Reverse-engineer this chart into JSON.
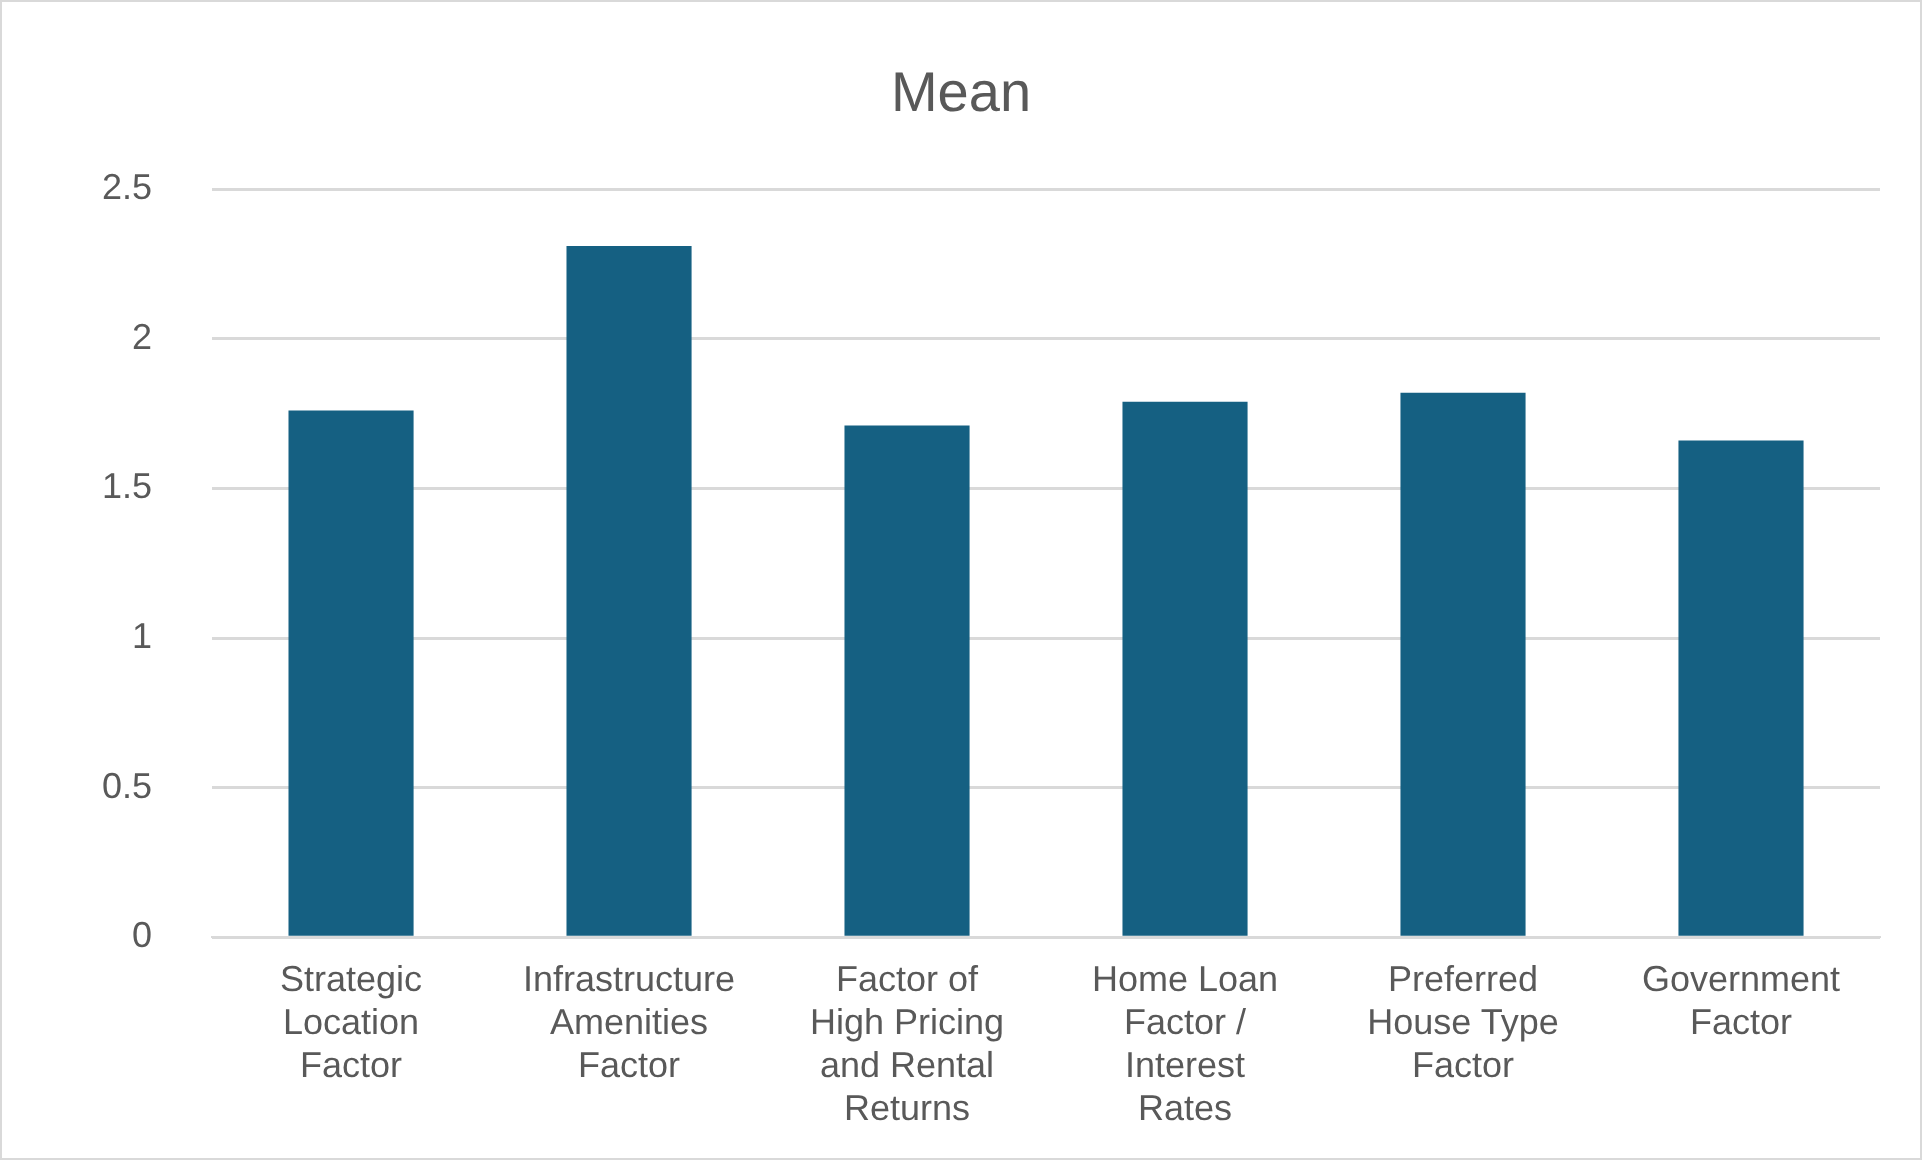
{
  "chart_data": {
    "type": "bar",
    "title": "Mean",
    "categories": [
      "Strategic Location Factor",
      "Infrastructure Amenities Factor",
      "Factor of High Pricing and Rental Returns",
      "Home Loan Factor / Interest Rates",
      "Preferred House Type Factor",
      "Government Factor"
    ],
    "values": [
      1.76,
      2.31,
      1.71,
      1.79,
      1.82,
      1.66
    ],
    "color": "#156082",
    "ylim": [
      0,
      2.5
    ],
    "yticks": [
      0,
      0.5,
      1,
      1.5,
      2,
      2.5
    ],
    "grid": "y"
  }
}
